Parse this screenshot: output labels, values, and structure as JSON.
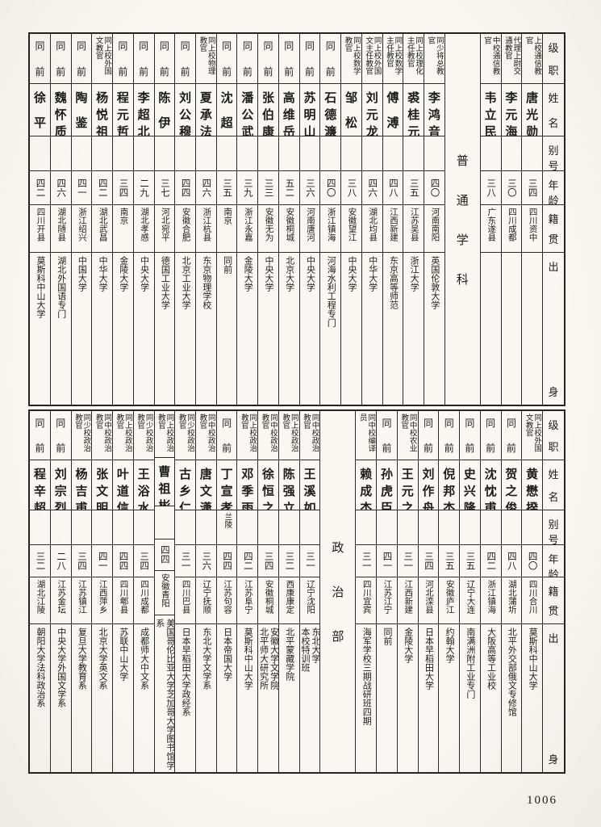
{
  "page": {
    "number": "1006"
  },
  "colors": {
    "paper": "#f6f3ec",
    "ink": "#1c1c1c",
    "rule": "#2b2b2b"
  },
  "row_headers": [
    "级职",
    "姓名",
    "别号",
    "年龄",
    "籍贯",
    "出身"
  ],
  "tables": [
    {
      "id": "top-roster",
      "section_label": "普通学科",
      "section_break_after": 3,
      "people": [
        {
          "rank": "上校通信教官",
          "name": "唐光勋",
          "alias": "",
          "age": "三四",
          "origin": "四川资中",
          "education": ""
        },
        {
          "rank": "代理上尉交通教官",
          "name": "李元海",
          "alias": "",
          "age": "三〇",
          "origin": "四川成都",
          "education": ""
        },
        {
          "rank": "中校通信教官",
          "name": "韦立民",
          "alias": "",
          "age": "三八",
          "origin": "广东遂县",
          "education": ""
        },
        {
          "rank": "同少将总教官",
          "name": "李鸿音",
          "alias": "",
          "age": "四〇",
          "origin": "河南南阳",
          "education": "英国伦敦大学"
        },
        {
          "rank": "同上校理化主任教官",
          "name": "裘桂元",
          "alias": "",
          "age": "三五",
          "origin": "江苏吴县",
          "education": "浙江大学"
        },
        {
          "rank": "同上校数学主任教官",
          "name": "傅溥",
          "alias": "",
          "age": "四八",
          "origin": "江西新建",
          "education": "东京高等师范"
        },
        {
          "rank": "同上校外国文主任教官",
          "name": "刘元龙",
          "alias": "",
          "age": "四六",
          "origin": "湖北均县",
          "education": "中华大学"
        },
        {
          "rank": "同上校数学教官",
          "name": "邹松",
          "alias": "",
          "age": "三八",
          "origin": "安徽望江",
          "education": "中央大学"
        },
        {
          "rank": "同前",
          "name": "石德濂",
          "alias": "",
          "age": "四〇",
          "origin": "浙江镇海",
          "education": "河海水利工程专门"
        },
        {
          "rank": "同前",
          "name": "苏明山",
          "alias": "",
          "age": "三六",
          "origin": "河南唐河",
          "education": "中央大学"
        },
        {
          "rank": "同前",
          "name": "高维岳",
          "alias": "",
          "age": "五二",
          "origin": "安徽桐城",
          "education": "北京大学"
        },
        {
          "rank": "同前",
          "name": "张伯康",
          "alias": "",
          "age": "三三",
          "origin": "安徽无为",
          "education": "中央大学"
        },
        {
          "rank": "同前",
          "name": "潘公武",
          "alias": "",
          "age": "三九",
          "origin": "浙江永嘉",
          "education": "金陵大学"
        },
        {
          "rank": "同前",
          "name": "沈超",
          "alias": "",
          "age": "三五",
          "origin": "南京",
          "education": "同前"
        },
        {
          "rank": "同上校物理教官",
          "name": "夏承法",
          "alias": "",
          "age": "四六",
          "origin": "浙江杭县",
          "education": "东京物理学校"
        },
        {
          "rank": "同前",
          "name": "刘公穆",
          "alias": "",
          "age": "四四",
          "origin": "安徽合肥",
          "education": "北京工业大学"
        },
        {
          "rank": "同前",
          "name": "陈伊",
          "alias": "",
          "age": "三七",
          "origin": "河北宛平",
          "education": "德国工业大学"
        },
        {
          "rank": "同前",
          "name": "李超北",
          "alias": "",
          "age": "二九",
          "origin": "湖北孝感",
          "education": "中央大学"
        },
        {
          "rank": "同前",
          "name": "程元哲",
          "alias": "",
          "age": "三四",
          "origin": "南京",
          "education": "金陵大学"
        },
        {
          "rank": "同上校外国文教官",
          "name": "杨悦祖",
          "alias": "",
          "age": "四二",
          "origin": "湖北武昌",
          "education": "中华大学"
        },
        {
          "rank": "同前",
          "name": "陶鉴",
          "alias": "",
          "age": "四一",
          "origin": "浙江绍兴",
          "education": "中国大学"
        },
        {
          "rank": "同前",
          "name": "魏怀质",
          "alias": "",
          "age": "四六",
          "origin": "湖北随县",
          "education": "湖北外国语专门"
        },
        {
          "rank": "同前",
          "name": "徐平",
          "alias": "",
          "age": "四二",
          "origin": "四川开县",
          "education": "莫斯科中山大学"
        }
      ]
    },
    {
      "id": "bottom-roster",
      "section_label": "政治部",
      "section_break_after": 9,
      "people": [
        {
          "rank": "同上校外国文教官",
          "name": "黄懋揆",
          "alias": "",
          "age": "四〇",
          "origin": "四川合川",
          "education": "莫斯科中山大学"
        },
        {
          "rank": "同前",
          "name": "贺之俊",
          "alias": "",
          "age": "四八",
          "origin": "湖北蒲圻",
          "education": "北平外交部俄文专修馆"
        },
        {
          "rank": "同前",
          "name": "沈忱甫",
          "alias": "",
          "age": "四二",
          "origin": "浙江镇海",
          "education": "大阪高等工业校"
        },
        {
          "rank": "同前",
          "name": "史兴隆",
          "alias": "",
          "age": "三五",
          "origin": "辽宁大连",
          "education": "南满洲附工业专门"
        },
        {
          "rank": "同前",
          "name": "倪邦杰",
          "alias": "",
          "age": "三五",
          "origin": "安徽庐江",
          "education": "约翰大学"
        },
        {
          "rank": "同前",
          "name": "刘作舟",
          "alias": "",
          "age": "三四",
          "origin": "河北滦县",
          "education": "日本早稻田大学"
        },
        {
          "rank": "同中校农业教官",
          "name": "王元之",
          "alias": "",
          "age": "三一",
          "origin": "江西新建",
          "education": "金陵大学"
        },
        {
          "rank": "同前",
          "name": "孙虎臣",
          "alias": "",
          "age": "四一",
          "origin": "江苏江宁",
          "education": "同前"
        },
        {
          "rank": "同中校编译员",
          "name": "赖成杰",
          "alias": "",
          "age": "三一",
          "origin": "四川宜宾",
          "education": "海军学校三期战研班四期"
        },
        {
          "rank": "同中校政治教官",
          "name": "王溪如",
          "alias": "",
          "age": "三一",
          "origin": "辽宁沈阳",
          "education": "东北大学\n本校特训班"
        },
        {
          "rank": "同上校政治教官",
          "name": "陈强立",
          "alias": "",
          "age": "三二",
          "origin": "西康康定",
          "education": "北平蒙藏学院"
        },
        {
          "rank": "同中校政治教官",
          "name": "徐恒之",
          "alias": "",
          "age": "三四",
          "origin": "安徽桐城",
          "education": "安徽大学文学院\n北平师大研究所"
        },
        {
          "rank": "同上校政治教官",
          "name": "邓季雨",
          "alias": "",
          "age": "四二",
          "origin": "江苏阜宁",
          "education": "莫斯科中山大学"
        },
        {
          "rank": "同前",
          "name": "丁宣孝",
          "alias": "兰陵",
          "age": "四四",
          "origin": "江苏句容",
          "education": "日本帝国大学"
        },
        {
          "rank": "同中校政治教官",
          "name": "唐文潇",
          "alias": "",
          "age": "三六",
          "origin": "辽宁抚顺",
          "education": "东北大学文学系"
        },
        {
          "rank": "同少校政治教官",
          "name": "古乡仁",
          "alias": "",
          "age": "三一",
          "origin": "四川巴县",
          "education": "日本早稻田大学政经系"
        },
        {
          "rank": "同上校政治教官",
          "name": "曹祖彬",
          "alias": "",
          "age": "四四",
          "origin": "安徽青阳",
          "education": "美国哥伦比亚大学芝加哥大学图书馆学系"
        },
        {
          "rank": "同少校政治教官",
          "name": "王浴水",
          "alias": "",
          "age": "三四",
          "origin": "四川成都",
          "education": "成都师大中文系"
        },
        {
          "rank": "同上校政治教官",
          "name": "叶道信",
          "alias": "",
          "age": "四四",
          "origin": "四川郫县",
          "education": "苏联中山大学"
        },
        {
          "rank": "同中校政治教官",
          "name": "张文明",
          "alias": "",
          "age": "四一",
          "origin": "江西萍乡",
          "education": "北京大学英文系"
        },
        {
          "rank": "同少校政治教官",
          "name": "杨吉甫",
          "alias": "",
          "age": "三四",
          "origin": "江苏镇江",
          "education": "复旦大学教育系"
        },
        {
          "rank": "同前",
          "name": "刘宗烈",
          "alias": "",
          "age": "二八",
          "origin": "江苏金坛",
          "education": "中央大学外国文学系"
        },
        {
          "rank": "同前",
          "name": "程辛超",
          "alias": "",
          "age": "三二",
          "origin": "湖北江陵",
          "education": "朝阳大学法科政治系"
        }
      ]
    }
  ]
}
